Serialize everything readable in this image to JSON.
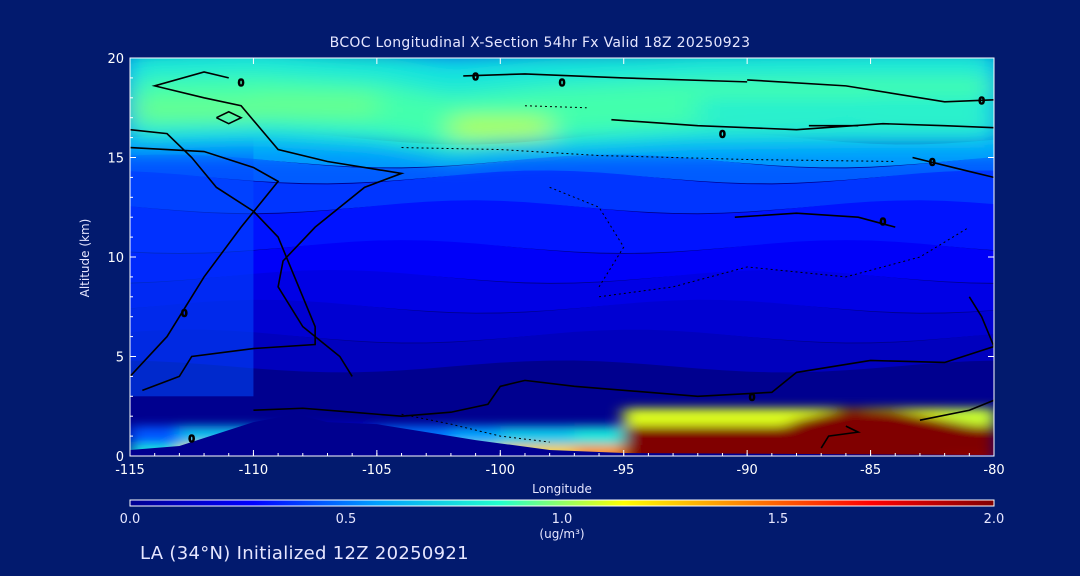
{
  "title": "BCOC Longitudinal X-Section 54hr  Fx Valid 18Z 20250923",
  "footer": "LA (34°N) Initialized 12Z 20250921",
  "colors": {
    "background": "#021a6e",
    "axis": "#ffffff",
    "contour": "#000000"
  },
  "chart_data": {
    "type": "heatmap",
    "xlabel": "Longitude",
    "ylabel": "Altitude (km)",
    "xlim": [
      -115,
      -80
    ],
    "ylim": [
      0,
      20
    ],
    "x_ticks": [
      -115,
      -110,
      -105,
      -100,
      -95,
      -90,
      -85,
      -80
    ],
    "x_tick_labels": [
      "-115",
      "-110",
      "-105",
      "-100",
      "-95",
      "-90",
      "-85",
      "-80"
    ],
    "y_ticks": [
      0,
      5,
      10,
      15,
      20
    ],
    "y_tick_labels": [
      "0",
      "5",
      "10",
      "15",
      "20"
    ],
    "colorbar": {
      "min": 0.0,
      "max": 2.0,
      "ticks": [
        0.0,
        0.5,
        1.0,
        1.5,
        2.0
      ],
      "tick_labels": [
        "0.0",
        "0.5",
        "1.0",
        "1.5",
        "2.0"
      ],
      "unit": "(ug/m³)",
      "colormap": [
        "#00008f",
        "#0000ff",
        "#00a0ff",
        "#22ffcc",
        "#ffff00",
        "#ff8000",
        "#ff0000",
        "#800000"
      ]
    },
    "contour_label": "0",
    "upper_band": [
      {
        "lon": -115,
        "alt": 17.4,
        "val": 0.95
      },
      {
        "lon": -110,
        "alt": 17.6,
        "val": 0.95
      },
      {
        "lon": -105,
        "alt": 17.2,
        "val": 0.9
      },
      {
        "lon": -102,
        "alt": 16.5,
        "val": 1.05
      },
      {
        "lon": -98,
        "alt": 17.0,
        "val": 0.9
      },
      {
        "lon": -92,
        "alt": 17.4,
        "val": 0.8
      },
      {
        "lon": -85,
        "alt": 17.5,
        "val": 0.8
      },
      {
        "lon": -80,
        "alt": 17.5,
        "val": 0.82
      }
    ],
    "surface_values": [
      {
        "lon": -115,
        "val": 0.8
      },
      {
        "lon": -113,
        "val": 1.2
      },
      {
        "lon": -110,
        "val": 0.75
      },
      {
        "lon": -108,
        "val": 0.55
      },
      {
        "lon": -105,
        "val": 0.9
      },
      {
        "lon": -102,
        "val": 1.05
      },
      {
        "lon": -100,
        "val": 1.25
      },
      {
        "lon": -97,
        "val": 1.4
      },
      {
        "lon": -95,
        "val": 2.0
      },
      {
        "lon": -90,
        "val": 2.0
      },
      {
        "lon": -87,
        "val": 2.0
      },
      {
        "lon": -85,
        "val": 2.0
      },
      {
        "lon": -82,
        "val": 1.95
      },
      {
        "lon": -80,
        "val": 1.8
      }
    ],
    "terrain": [
      {
        "lon": -115,
        "alt": 0.3
      },
      {
        "lon": -113,
        "alt": 0.5
      },
      {
        "lon": -110,
        "alt": 1.7
      },
      {
        "lon": -108.3,
        "alt": 2.1
      },
      {
        "lon": -107,
        "alt": 1.7
      },
      {
        "lon": -105,
        "alt": 1.6
      },
      {
        "lon": -103,
        "alt": 1.2
      },
      {
        "lon": -101,
        "alt": 0.8
      },
      {
        "lon": -98,
        "alt": 0.3
      },
      {
        "lon": -95,
        "alt": 0.15
      },
      {
        "lon": -85,
        "alt": 0.08
      },
      {
        "lon": -80,
        "alt": 0.05
      }
    ]
  }
}
